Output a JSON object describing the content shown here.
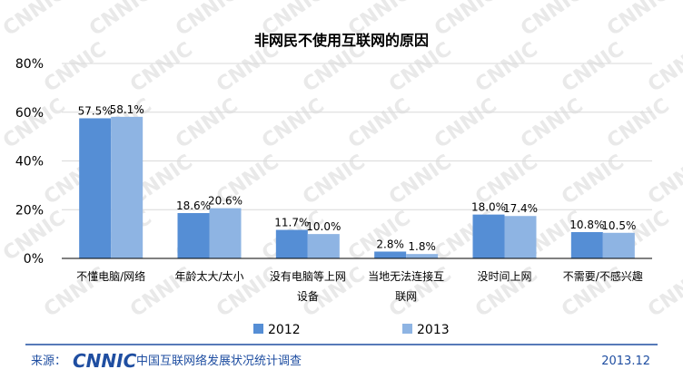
{
  "chart_data": {
    "type": "bar",
    "title": "非网民不使用互联网的原因",
    "categories": [
      [
        "不懂电脑/网络"
      ],
      [
        "年龄太大/太小"
      ],
      [
        "没有电脑等上网",
        "设备"
      ],
      [
        "当地无法连接互",
        "联网"
      ],
      [
        "没时间上网"
      ],
      [
        "不需要/不感兴趣"
      ]
    ],
    "series": [
      {
        "name": "2012",
        "color": "#558ed5",
        "values": [
          57.5,
          18.6,
          11.7,
          2.8,
          18.0,
          10.8
        ],
        "labels": [
          "57.5%",
          "18.6%",
          "11.7%",
          "2.8%",
          "18.0%",
          "10.8%"
        ]
      },
      {
        "name": "2013",
        "color": "#8eb4e3",
        "values": [
          58.1,
          20.6,
          10.0,
          1.8,
          17.4,
          10.5
        ],
        "labels": [
          "58.1%",
          "20.6%",
          "10.0%",
          "1.8%",
          "17.4%",
          "10.5%"
        ]
      }
    ],
    "y_ticks": [
      "0%",
      "20%",
      "40%",
      "60%",
      "80%"
    ],
    "ylim": [
      0,
      80
    ],
    "grid": true,
    "legend": "bottom"
  },
  "footer": {
    "source_label": "来源：",
    "logo_text": "CNNIC",
    "org_name": "中国互联网络发展状况统计调查",
    "date": "2013.12"
  },
  "watermark": "CNNIC",
  "colors": {
    "accent": "#1f4ea1",
    "footer_rule": "#1f4ea1"
  }
}
